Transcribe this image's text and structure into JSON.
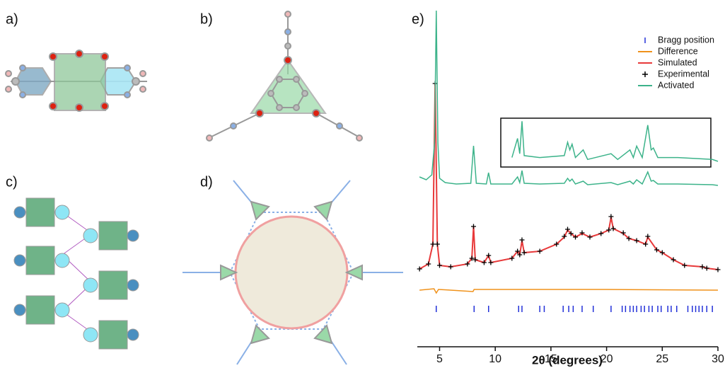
{
  "panels": [
    {
      "label": "a)"
    },
    {
      "label": "b)"
    },
    {
      "label": "c)"
    },
    {
      "label": "d)"
    }
  ],
  "chart_data": {
    "type": "line",
    "panel_label": "e)",
    "xlabel": "2θ (degrees)",
    "xlim": [
      3,
      30
    ],
    "xticks": [
      5,
      10,
      15,
      20,
      25,
      30
    ],
    "series": [
      {
        "name": "Bragg position",
        "color": "#2230d8",
        "x": [
          4.7,
          8.1,
          9.4,
          12.1,
          12.4,
          14.0,
          14.4,
          16.1,
          16.6,
          17.0,
          17.8,
          18.8,
          20.4,
          21.4,
          21.7,
          22.1,
          22.4,
          22.7,
          23.1,
          23.4,
          23.8,
          24.1,
          24.6,
          24.9,
          25.5,
          25.8,
          26.3,
          27.3,
          27.7,
          28.0,
          28.3,
          28.6,
          29.0,
          29.5
        ]
      },
      {
        "name": "Difference",
        "color": "#f0921b",
        "x": [
          3.2,
          4.5,
          4.7,
          4.9,
          6,
          8,
          8.1,
          12.4,
          20,
          30
        ],
        "values": [
          0,
          2,
          -4,
          1,
          0,
          -2,
          1,
          1,
          1,
          0
        ]
      },
      {
        "name": "Simulated",
        "color": "#e8393a",
        "x": [
          3.2,
          4.0,
          4.4,
          4.6,
          4.8,
          5.0,
          6,
          7.5,
          7.9,
          8.05,
          8.2,
          9,
          9.4,
          9.6,
          11.5,
          12.0,
          12.2,
          12.4,
          12.6,
          14,
          15.5,
          16.2,
          16.5,
          16.8,
          17.2,
          17.8,
          18.5,
          19.5,
          20.2,
          20.4,
          20.6,
          21.5,
          22,
          22.7,
          23.5,
          23.7,
          24.5,
          25,
          26,
          27,
          28.6,
          29,
          30
        ],
        "values": [
          5,
          12,
          40,
          267,
          40,
          10,
          8,
          12,
          20,
          65,
          18,
          14,
          24,
          14,
          20,
          30,
          25,
          45,
          28,
          30,
          40,
          50,
          60,
          55,
          50,
          55,
          50,
          55,
          60,
          78,
          62,
          55,
          48,
          45,
          40,
          50,
          32,
          28,
          18,
          10,
          8,
          6,
          4
        ]
      },
      {
        "name": "Experimental",
        "color": "#000000",
        "x": [
          3.2,
          4.0,
          4.4,
          4.6,
          4.8,
          5.0,
          6,
          7.5,
          7.9,
          8.05,
          8.2,
          9,
          9.4,
          9.6,
          11.5,
          12.0,
          12.2,
          12.4,
          12.6,
          14,
          15.5,
          16.2,
          16.5,
          16.8,
          17.2,
          17.8,
          18.5,
          19.5,
          20.2,
          20.4,
          20.6,
          21.5,
          22,
          22.7,
          23.5,
          23.7,
          24.5,
          25,
          26,
          27,
          28.6,
          29,
          30
        ],
        "values": [
          5,
          12,
          40,
          267,
          40,
          10,
          8,
          12,
          20,
          65,
          18,
          14,
          24,
          14,
          20,
          30,
          25,
          46,
          28,
          30,
          40,
          51,
          61,
          55,
          50,
          56,
          50,
          55,
          60,
          79,
          62,
          56,
          48,
          45,
          40,
          51,
          32,
          28,
          18,
          10,
          8,
          6,
          4
        ]
      },
      {
        "name": "Activated",
        "color": "#3cb38a",
        "x": [
          3.2,
          3.8,
          4.3,
          4.55,
          4.7,
          4.85,
          5.0,
          5.5,
          6.5,
          7.8,
          8.05,
          8.3,
          9.2,
          9.4,
          9.6,
          11.5,
          12.0,
          12.2,
          12.4,
          12.6,
          14,
          16.2,
          16.5,
          16.7,
          16.9,
          17.2,
          17.9,
          18.3,
          20.4,
          21,
          22.1,
          22.4,
          22.7,
          23.2,
          23.7,
          24.0,
          24.2,
          24.6,
          26.4,
          29.5,
          30
        ],
        "values": [
          12,
          8,
          15,
          60,
          247,
          60,
          10,
          4,
          2,
          3,
          56,
          3,
          2,
          18,
          2,
          2,
          12,
          4,
          21,
          3,
          2,
          3,
          10,
          6,
          9,
          2,
          6,
          1,
          4,
          1,
          6,
          2,
          8,
          2,
          19,
          6,
          7,
          2,
          2,
          1,
          0
        ]
      }
    ]
  }
}
